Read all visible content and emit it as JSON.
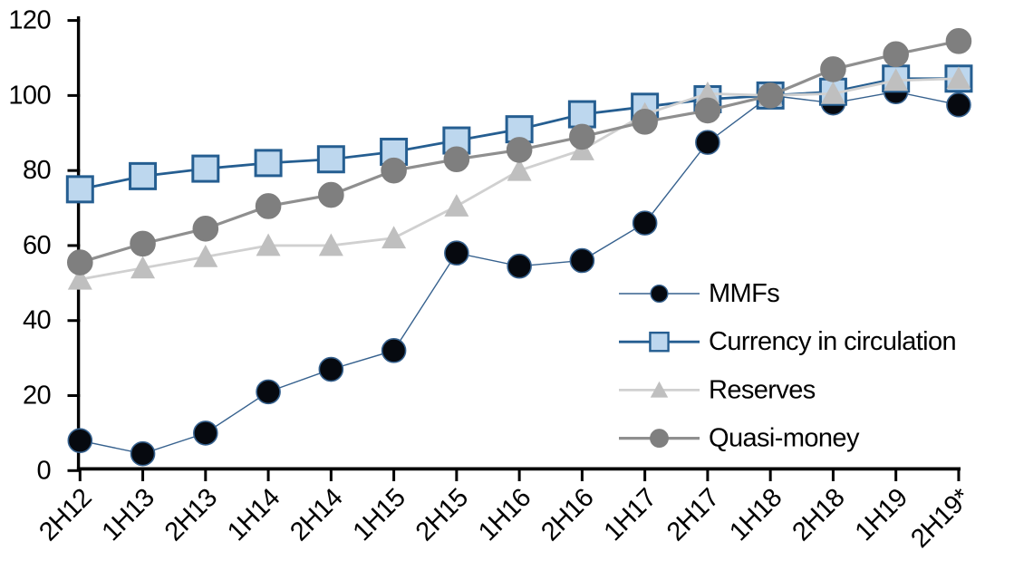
{
  "chart_data": {
    "type": "line",
    "title": "",
    "xlabel": "",
    "ylabel": "",
    "grid": false,
    "legend_position": "inside-right",
    "ylim": [
      0,
      120
    ],
    "yticks": [
      0,
      20,
      40,
      60,
      80,
      100,
      120
    ],
    "categories": [
      "2H12",
      "1H13",
      "2H13",
      "1H14",
      "2H14",
      "1H15",
      "2H15",
      "1H16",
      "2H16",
      "1H17",
      "2H17",
      "1H18",
      "2H18",
      "1H19",
      "2H19*"
    ],
    "index_note": "all series equal 100 at 1H18",
    "series": [
      {
        "name": "MMFs",
        "marker": "circle",
        "marker_fill": "#06090f",
        "marker_stroke": "#36618e",
        "line_color": "#36618e",
        "line_width": 1.4,
        "marker_size": 26,
        "values": [
          8,
          4.5,
          10,
          21,
          27,
          32,
          58,
          54.5,
          56,
          66,
          87.5,
          100,
          98,
          101,
          97.5
        ]
      },
      {
        "name": "Currency in circulation",
        "marker": "square",
        "marker_fill": "#bdd7ee",
        "marker_stroke": "#255e91",
        "line_color": "#255e91",
        "line_width": 2.8,
        "marker_size": 28,
        "values": [
          75,
          78.5,
          80.5,
          82,
          83,
          85,
          88,
          91,
          95,
          97,
          99,
          100,
          101,
          104.5,
          104.5
        ]
      },
      {
        "name": "Reserves",
        "marker": "triangle",
        "marker_fill": "#bfbfbf",
        "marker_stroke": "none",
        "line_color": "#d0d0d0",
        "line_width": 2.8,
        "marker_size": 27,
        "values": [
          51,
          54,
          57,
          60,
          60,
          62,
          70.5,
          80,
          85.5,
          95,
          100.5,
          100,
          100.5,
          104,
          104.5
        ]
      },
      {
        "name": "Quasi-money",
        "marker": "circle",
        "marker_fill": "#7f7f7f",
        "marker_stroke": "#7f7f7f",
        "line_color": "#8f8f8f",
        "line_width": 3.2,
        "marker_size": 27,
        "values": [
          55.5,
          60.5,
          64.5,
          70.5,
          73.5,
          80,
          83,
          85.5,
          89,
          93,
          96,
          100,
          107,
          111,
          114.5
        ]
      }
    ],
    "axis_color": "#000000"
  }
}
